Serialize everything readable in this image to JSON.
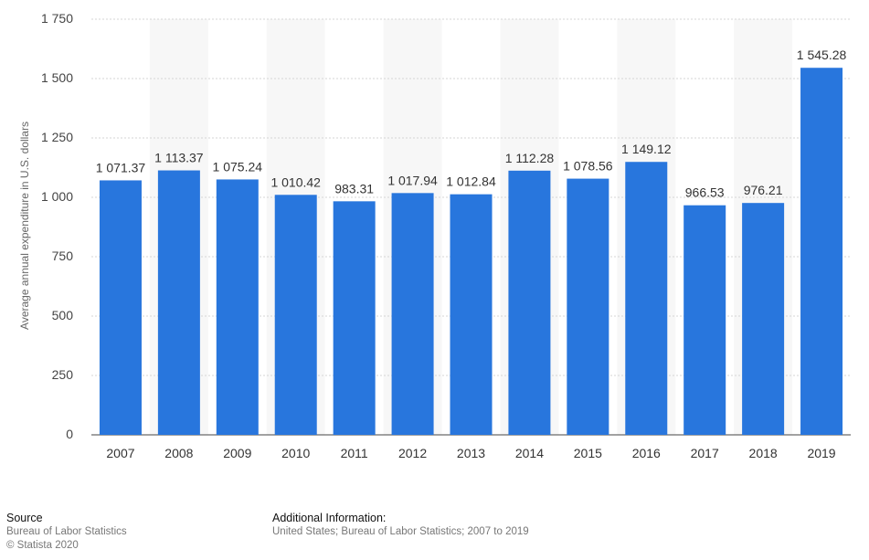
{
  "chart_data": {
    "type": "bar",
    "categories": [
      "2007",
      "2008",
      "2009",
      "2010",
      "2011",
      "2012",
      "2013",
      "2014",
      "2015",
      "2016",
      "2017",
      "2018",
      "2019"
    ],
    "values": [
      1071.37,
      1113.37,
      1075.24,
      1010.42,
      983.31,
      1017.94,
      1012.84,
      1112.28,
      1078.56,
      1149.12,
      966.53,
      976.21,
      1545.28
    ],
    "value_labels": [
      "1 071.37",
      "1 113.37",
      "1 075.24",
      "1 010.42",
      "983.31",
      "1 017.94",
      "1 012.84",
      "1 112.28",
      "1 078.56",
      "1 149.12",
      "966.53",
      "976.21",
      "1 545.28"
    ],
    "yticks": [
      0,
      250,
      500,
      750,
      1000,
      1250,
      1500,
      1750
    ],
    "ytick_labels": [
      "0",
      "250",
      "500",
      "750",
      "1 000",
      "1 250",
      "1 500",
      "1 750"
    ],
    "ylim": [
      0,
      1750
    ],
    "ylabel": "Average annual expenditure in U.S. dollars",
    "xlabel": "",
    "grid": true,
    "bar_color": "#2876dd",
    "alt_band_color": "#f7f7f7"
  },
  "footer": {
    "source_heading": "Source",
    "source_line1": "Bureau of Labor Statistics",
    "source_line2": "© Statista 2020",
    "info_heading": "Additional Information:",
    "info_text": "United States; Bureau of Labor Statistics; 2007 to 2019"
  }
}
